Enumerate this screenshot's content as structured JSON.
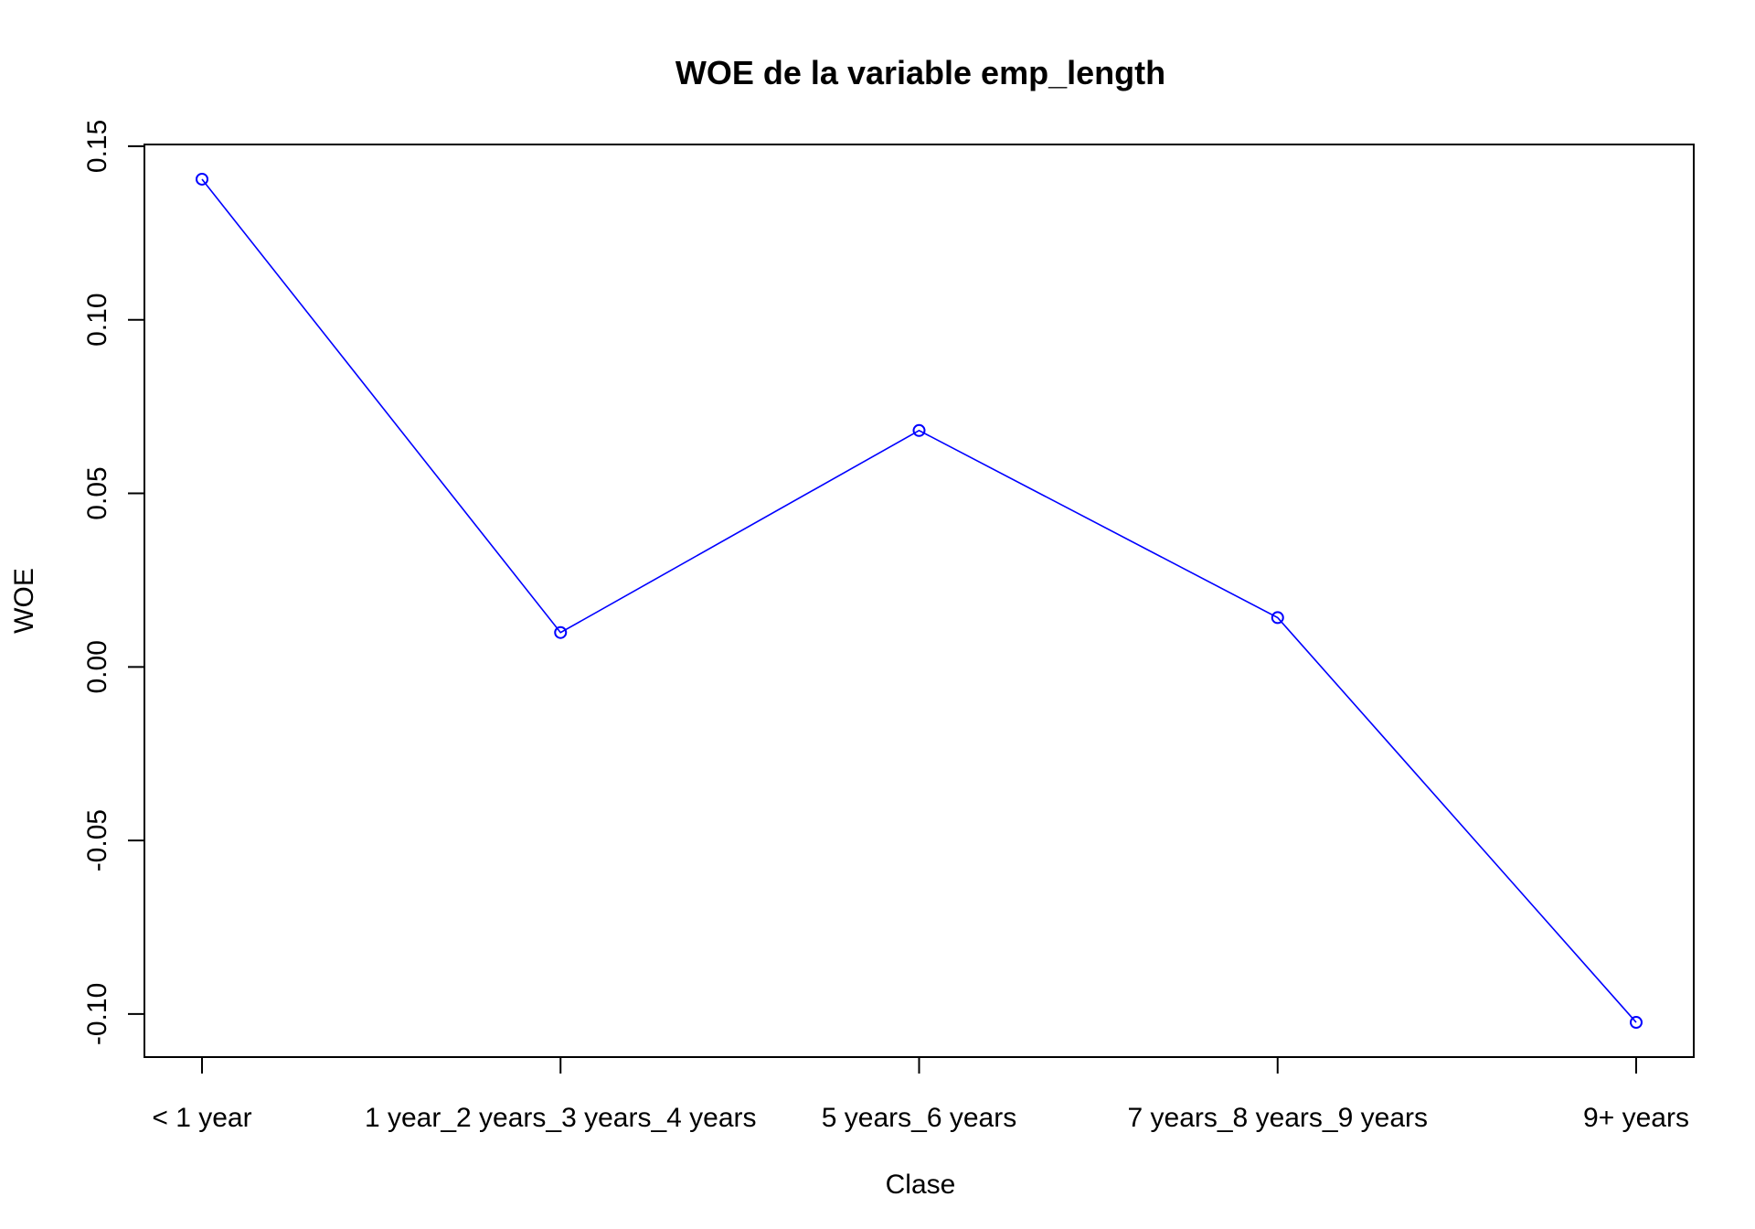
{
  "chart_data": {
    "type": "line",
    "title": "WOE de la variable emp_length",
    "xlabel": "Clase",
    "ylabel": "WOE",
    "categories": [
      "< 1 year",
      "1 year_2 years_3 years_4 years",
      "5 years_6 years",
      "7 years_8 years_9 years",
      "9+ years"
    ],
    "series": [
      {
        "values": [
          0.1405,
          0.0099,
          0.0681,
          0.0142,
          -0.1024
        ],
        "color": "#0000ff"
      }
    ],
    "yticks": [
      -0.1,
      -0.05,
      0.0,
      0.05,
      0.1,
      0.15
    ],
    "ytick_labels": [
      "-0.10",
      "-0.05",
      "0.00",
      "0.05",
      "0.10",
      "0.15"
    ],
    "ylim": [
      -0.1124,
      0.1505
    ],
    "grid": false,
    "legend": false
  }
}
